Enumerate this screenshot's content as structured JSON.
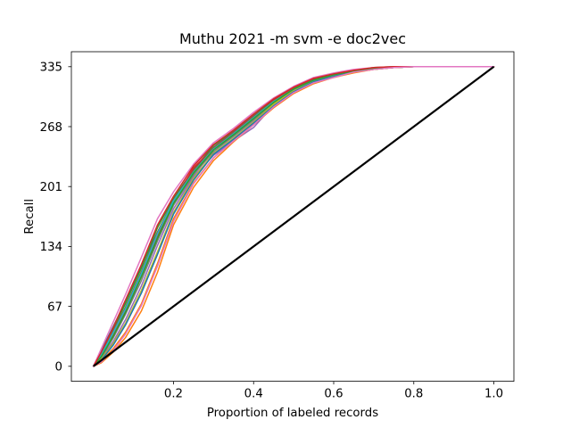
{
  "chart_data": {
    "type": "line",
    "title": "Muthu 2021 -m svm -e doc2vec",
    "xlabel": "Proportion of labeled records",
    "ylabel": "Recall",
    "xlim": [
      -0.055,
      1.05
    ],
    "ylim": [
      -16.75,
      351.75
    ],
    "x_ticks": [
      {
        "value": 0.2,
        "label": "0.2"
      },
      {
        "value": 0.4,
        "label": "0.4"
      },
      {
        "value": 0.6,
        "label": "0.6"
      },
      {
        "value": 0.8,
        "label": "0.8"
      },
      {
        "value": 1.0,
        "label": "1.0"
      }
    ],
    "y_ticks": [
      {
        "value": 0,
        "label": "0"
      },
      {
        "value": 67,
        "label": "67"
      },
      {
        "value": 134,
        "label": "134"
      },
      {
        "value": 201,
        "label": "201"
      },
      {
        "value": 268,
        "label": "268"
      },
      {
        "value": 335,
        "label": "335"
      }
    ],
    "grid": false,
    "legend": "none",
    "series_color_cycle": [
      "#1f77b4",
      "#ff7f0e",
      "#2ca02c",
      "#d62728",
      "#9467bd",
      "#8c564b",
      "#e377c2",
      "#7f7f7f",
      "#bcbd22",
      "#17becf"
    ],
    "reference_line": {
      "color": "#000000",
      "x": [
        0,
        1.0
      ],
      "y": [
        0,
        335
      ]
    },
    "series": [
      {
        "color": "#1f77b4",
        "x": [
          0,
          0.02,
          0.05,
          0.08,
          0.12,
          0.16,
          0.2,
          0.25,
          0.3,
          0.35,
          0.4,
          0.45,
          0.5,
          0.55,
          0.6,
          0.65,
          0.7,
          0.75,
          0.8,
          0.85,
          0.9,
          1.0
        ],
        "y": [
          0,
          18,
          45,
          72,
          112,
          150,
          182,
          215,
          240,
          258,
          276,
          295,
          310,
          320,
          325,
          330,
          333,
          334,
          335,
          335,
          335,
          335
        ]
      },
      {
        "color": "#ff7f0e",
        "x": [
          0,
          0.02,
          0.05,
          0.08,
          0.12,
          0.16,
          0.2,
          0.25,
          0.3,
          0.35,
          0.4,
          0.45,
          0.5,
          0.55,
          0.6,
          0.65,
          0.7,
          0.75,
          0.8,
          0.85,
          0.9,
          1.0
        ],
        "y": [
          0,
          6,
          20,
          38,
          70,
          115,
          165,
          205,
          233,
          253,
          271,
          290,
          306,
          317,
          323,
          329,
          332,
          334,
          335,
          335,
          335,
          335
        ]
      },
      {
        "color": "#2ca02c",
        "x": [
          0,
          0.02,
          0.05,
          0.08,
          0.12,
          0.16,
          0.2,
          0.25,
          0.3,
          0.35,
          0.4,
          0.45,
          0.5,
          0.55,
          0.6,
          0.65,
          0.7,
          0.75,
          0.8,
          0.85,
          0.9,
          1.0
        ],
        "y": [
          0,
          15,
          42,
          70,
          110,
          155,
          188,
          220,
          247,
          263,
          281,
          298,
          312,
          322,
          327,
          331,
          334,
          335,
          335,
          335,
          335,
          335
        ]
      },
      {
        "color": "#d62728",
        "x": [
          0,
          0.02,
          0.05,
          0.08,
          0.12,
          0.16,
          0.2,
          0.25,
          0.3,
          0.35,
          0.4,
          0.45,
          0.5,
          0.55,
          0.6,
          0.65,
          0.7,
          0.75,
          0.8,
          0.85,
          0.9,
          1.0
        ],
        "y": [
          0,
          12,
          35,
          62,
          102,
          145,
          184,
          222,
          244,
          261,
          279,
          297,
          311,
          321,
          326,
          331,
          333,
          335,
          335,
          335,
          335,
          335
        ]
      },
      {
        "color": "#9467bd",
        "x": [
          0,
          0.02,
          0.05,
          0.08,
          0.12,
          0.16,
          0.2,
          0.25,
          0.3,
          0.35,
          0.4,
          0.45,
          0.5,
          0.55,
          0.6,
          0.65,
          0.7,
          0.75,
          0.8,
          0.85,
          0.9,
          1.0
        ],
        "y": [
          0,
          9,
          28,
          52,
          90,
          135,
          176,
          212,
          236,
          252,
          267,
          292,
          308,
          318,
          324,
          330,
          333,
          334,
          335,
          335,
          335,
          335
        ]
      },
      {
        "color": "#8c564b",
        "x": [
          0,
          0.02,
          0.05,
          0.08,
          0.12,
          0.16,
          0.2,
          0.25,
          0.3,
          0.35,
          0.4,
          0.45,
          0.5,
          0.55,
          0.6,
          0.65,
          0.7,
          0.75,
          0.8,
          0.85,
          0.9,
          1.0
        ],
        "y": [
          0,
          14,
          40,
          66,
          106,
          150,
          186,
          219,
          245,
          262,
          280,
          296,
          310,
          320,
          326,
          330,
          333,
          335,
          335,
          335,
          335,
          335
        ]
      },
      {
        "color": "#e377c2",
        "x": [
          0,
          0.02,
          0.05,
          0.08,
          0.12,
          0.16,
          0.2,
          0.25,
          0.3,
          0.35,
          0.4,
          0.45,
          0.5,
          0.55,
          0.6,
          0.65,
          0.7,
          0.75,
          0.8,
          0.85,
          0.9,
          1.0
        ],
        "y": [
          0,
          20,
          50,
          80,
          122,
          165,
          195,
          226,
          250,
          266,
          284,
          300,
          313,
          323,
          328,
          332,
          334,
          335,
          335,
          335,
          335,
          335
        ]
      },
      {
        "color": "#7f7f7f",
        "x": [
          0,
          0.02,
          0.05,
          0.08,
          0.12,
          0.16,
          0.2,
          0.25,
          0.3,
          0.35,
          0.4,
          0.45,
          0.5,
          0.55,
          0.6,
          0.65,
          0.7,
          0.75,
          0.8,
          0.85,
          0.9,
          1.0
        ],
        "y": [
          0,
          10,
          32,
          58,
          96,
          140,
          180,
          214,
          240,
          257,
          275,
          294,
          309,
          319,
          325,
          330,
          333,
          334,
          335,
          335,
          335,
          335
        ]
      },
      {
        "color": "#bcbd22",
        "x": [
          0,
          0.02,
          0.05,
          0.08,
          0.12,
          0.16,
          0.2,
          0.25,
          0.3,
          0.35,
          0.4,
          0.45,
          0.5,
          0.55,
          0.6,
          0.65,
          0.7,
          0.75,
          0.8,
          0.85,
          0.9,
          1.0
        ],
        "y": [
          0,
          8,
          26,
          48,
          85,
          128,
          172,
          210,
          238,
          255,
          273,
          293,
          308,
          318,
          324,
          329,
          332,
          334,
          335,
          335,
          335,
          335
        ]
      },
      {
        "color": "#17becf",
        "x": [
          0,
          0.02,
          0.05,
          0.08,
          0.12,
          0.16,
          0.2,
          0.25,
          0.3,
          0.35,
          0.4,
          0.45,
          0.5,
          0.55,
          0.6,
          0.65,
          0.7,
          0.75,
          0.8,
          0.85,
          0.9,
          1.0
        ],
        "y": [
          0,
          13,
          38,
          64,
          104,
          148,
          185,
          217,
          243,
          260,
          278,
          296,
          310,
          320,
          326,
          330,
          333,
          335,
          335,
          335,
          335,
          335
        ]
      },
      {
        "color": "#1f77b4",
        "x": [
          0,
          0.02,
          0.05,
          0.08,
          0.12,
          0.16,
          0.2,
          0.25,
          0.3,
          0.35,
          0.4,
          0.45,
          0.5,
          0.55,
          0.6,
          0.65,
          0.7,
          0.75,
          0.8,
          0.85,
          0.9,
          1.0
        ],
        "y": [
          0,
          7,
          24,
          46,
          82,
          125,
          170,
          208,
          237,
          254,
          272,
          291,
          307,
          318,
          324,
          329,
          332,
          334,
          335,
          335,
          335,
          335
        ]
      },
      {
        "color": "#ff7f0e",
        "x": [
          0,
          0.02,
          0.05,
          0.08,
          0.12,
          0.16,
          0.2,
          0.25,
          0.3,
          0.35,
          0.4,
          0.45,
          0.5,
          0.55,
          0.6,
          0.65,
          0.7,
          0.75,
          0.8,
          0.85,
          0.9,
          1.0
        ],
        "y": [
          0,
          4,
          16,
          32,
          62,
          105,
          158,
          200,
          230,
          251,
          270,
          289,
          305,
          316,
          323,
          328,
          332,
          334,
          335,
          335,
          335,
          335
        ]
      },
      {
        "color": "#2ca02c",
        "x": [
          0,
          0.02,
          0.05,
          0.08,
          0.12,
          0.16,
          0.2,
          0.25,
          0.3,
          0.35,
          0.4,
          0.45,
          0.5,
          0.55,
          0.6,
          0.65,
          0.7,
          0.75,
          0.8,
          0.85,
          0.9,
          1.0
        ],
        "y": [
          0,
          11,
          34,
          60,
          100,
          143,
          182,
          216,
          242,
          259,
          277,
          295,
          310,
          320,
          326,
          330,
          333,
          335,
          335,
          335,
          335,
          335
        ]
      },
      {
        "color": "#d62728",
        "x": [
          0,
          0.02,
          0.05,
          0.08,
          0.12,
          0.16,
          0.2,
          0.25,
          0.3,
          0.35,
          0.4,
          0.45,
          0.5,
          0.55,
          0.6,
          0.65,
          0.7,
          0.75,
          0.8,
          0.85,
          0.9,
          1.0
        ],
        "y": [
          0,
          16,
          44,
          74,
          114,
          158,
          190,
          224,
          248,
          264,
          282,
          299,
          312,
          322,
          327,
          331,
          334,
          335,
          335,
          335,
          335,
          335
        ]
      },
      {
        "color": "#e377c2",
        "x": [
          0,
          0.02,
          0.05,
          0.08,
          0.12,
          0.16,
          0.2,
          0.25,
          0.3,
          0.35,
          0.4,
          0.45,
          0.5,
          0.55,
          0.6,
          0.65,
          0.7,
          0.75,
          0.8,
          0.85,
          0.9,
          1.0
        ],
        "y": [
          0,
          5,
          18,
          36,
          68,
          112,
          162,
          204,
          233,
          252,
          270,
          290,
          306,
          317,
          323,
          329,
          332,
          334,
          335,
          335,
          335,
          335
        ]
      }
    ]
  }
}
